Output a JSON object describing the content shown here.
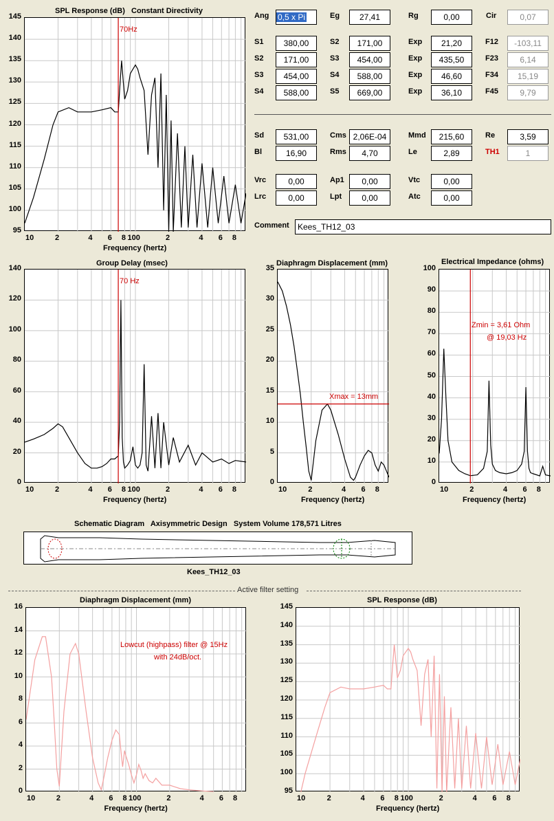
{
  "params": {
    "Ang": {
      "label": "Ang",
      "value": "0,5 x Pi"
    },
    "Eg": {
      "label": "Eg",
      "value": "27,41"
    },
    "Rg": {
      "label": "Rg",
      "value": "0,00"
    },
    "Cir": {
      "label": "Cir",
      "value": "0,07"
    },
    "rows": [
      {
        "a": "S1",
        "av": "380,00",
        "b": "S2",
        "bv": "171,00",
        "c": "Exp",
        "cv": "21,20",
        "d": "F12",
        "dv": "-103,11"
      },
      {
        "a": "S2",
        "av": "171,00",
        "b": "S3",
        "bv": "454,00",
        "c": "Exp",
        "cv": "435,50",
        "d": "F23",
        "dv": "6,14"
      },
      {
        "a": "S3",
        "av": "454,00",
        "b": "S4",
        "bv": "588,00",
        "c": "Exp",
        "cv": "46,60",
        "d": "F34",
        "dv": "15,19"
      },
      {
        "a": "S4",
        "av": "588,00",
        "b": "S5",
        "bv": "669,00",
        "c": "Exp",
        "cv": "36,10",
        "d": "F45",
        "dv": "9,79"
      }
    ],
    "driver": [
      {
        "a": "Sd",
        "av": "531,00",
        "b": "Cms",
        "bv": "2,06E-04",
        "c": "Mmd",
        "cv": "215,60",
        "d": "Re",
        "dv": "3,59"
      },
      {
        "a": "Bl",
        "av": "16,90",
        "b": "Rms",
        "bv": "4,70",
        "c": "Le",
        "cv": "2,89",
        "d": "TH1",
        "dv": "1"
      }
    ],
    "extra": [
      {
        "a": "Vrc",
        "av": "0,00",
        "b": "Ap1",
        "bv": "0,00",
        "c": "Vtc",
        "cv": "0,00"
      },
      {
        "a": "Lrc",
        "av": "0,00",
        "b": "Lpt",
        "bv": "0,00",
        "c": "Atc",
        "cv": "0,00"
      }
    ],
    "comment_label": "Comment",
    "comment_value": "Kees_TH12_03"
  },
  "colors": {
    "curve": "#000000",
    "marker": "#cc0000",
    "filtered": "#f4a0a0",
    "grid": "#c8c8c8"
  },
  "xlabel": "Frequency (hertz)",
  "log_ticks": [
    "10",
    "2",
    "4",
    "6",
    "8",
    "100",
    "2",
    "4",
    "6",
    "8"
  ],
  "schematic": {
    "title": "Schematic Diagram   Axisymmetric Design   System Volume 178,571 Litres",
    "caption": "Kees_TH12_03"
  },
  "filter_section": {
    "title": "Active filter setting",
    "note1": "Lowcut (highpass) filter @ 15Hz",
    "note2": "with 24dB/oct."
  },
  "chart_data": [
    {
      "id": "spl",
      "type": "line",
      "title": "SPL Response (dB)   Constant Directivity",
      "xlabel": "Frequency (hertz)",
      "ylabel": "",
      "xscale": "log",
      "xlim": [
        10,
        1000
      ],
      "ylim": [
        95,
        145
      ],
      "yticks": [
        95,
        100,
        105,
        110,
        115,
        120,
        125,
        130,
        135,
        140,
        145
      ],
      "marker": {
        "x": 70,
        "label": "70Hz"
      },
      "series": [
        {
          "x": [
            10,
            12,
            15,
            18,
            20,
            25,
            30,
            40,
            50,
            60,
            65,
            70,
            72,
            75,
            80,
            85,
            90,
            100,
            105,
            110,
            120,
            130,
            140,
            150,
            160,
            170,
            180,
            190,
            200,
            210,
            220,
            240,
            260,
            280,
            300,
            330,
            360,
            400,
            450,
            500,
            560,
            630,
            700,
            800,
            900,
            1000
          ],
          "y": [
            97,
            103,
            112,
            120,
            123,
            124,
            123,
            123,
            123.5,
            124,
            123,
            123,
            128,
            135,
            126,
            128,
            132,
            134,
            133,
            131,
            128,
            113,
            127,
            131,
            110,
            132,
            100,
            127,
            95,
            121,
            95,
            118,
            96,
            115,
            96,
            113,
            96,
            111,
            96,
            110,
            97,
            108,
            97,
            106,
            97,
            104
          ]
        }
      ]
    },
    {
      "id": "gd",
      "type": "line",
      "title": "Group Delay (msec)",
      "xlabel": "Frequency (hertz)",
      "ylabel": "",
      "xscale": "log",
      "xlim": [
        10,
        1000
      ],
      "ylim": [
        0,
        140
      ],
      "yticks": [
        0,
        20,
        40,
        60,
        80,
        100,
        120,
        140
      ],
      "marker": {
        "x": 70,
        "label": "70 Hz"
      },
      "series": [
        {
          "x": [
            10,
            12,
            15,
            18,
            20,
            22,
            25,
            30,
            35,
            40,
            45,
            50,
            55,
            60,
            65,
            70,
            72,
            74,
            76,
            78,
            80,
            85,
            90,
            95,
            100,
            105,
            110,
            115,
            120,
            125,
            130,
            140,
            150,
            160,
            170,
            180,
            200,
            220,
            250,
            300,
            350,
            400,
            500,
            600,
            700,
            800,
            1000
          ],
          "y": [
            27,
            29,
            32,
            36,
            39,
            37,
            30,
            20,
            13,
            10,
            10,
            11,
            13,
            16,
            16,
            18,
            40,
            120,
            30,
            14,
            10,
            12,
            15,
            24,
            12,
            10,
            12,
            20,
            78,
            12,
            8,
            44,
            10,
            46,
            10,
            40,
            12,
            30,
            14,
            25,
            12,
            20,
            14,
            16,
            13,
            15,
            14
          ]
        }
      ]
    },
    {
      "id": "disp",
      "type": "line",
      "title": "Diaphragm Displacement (mm)",
      "xlabel": "Frequency (hertz)",
      "ylabel": "",
      "xscale": "log",
      "xlim": [
        10,
        100
      ],
      "ylim": [
        0,
        35
      ],
      "yticks": [
        0,
        5,
        10,
        15,
        20,
        25,
        30,
        35
      ],
      "hline": {
        "y": 13,
        "label": "Xmax = 13mm"
      },
      "series": [
        {
          "x": [
            10,
            11,
            12,
            13,
            14,
            15,
            16,
            17,
            18,
            19,
            20,
            22,
            25,
            28,
            30,
            35,
            40,
            45,
            48,
            50,
            55,
            60,
            65,
            70,
            75,
            80,
            85,
            90,
            100
          ],
          "y": [
            33,
            31.5,
            29,
            26,
            22.5,
            18.5,
            14.5,
            10,
            6,
            2,
            0.5,
            7,
            12,
            13,
            12,
            8,
            4,
            1,
            0.5,
            1,
            3,
            4.5,
            5.4,
            5,
            3,
            2,
            3.5,
            3,
            1
          ]
        }
      ]
    },
    {
      "id": "imp",
      "type": "line",
      "title": "Electrical Impedance (ohms)",
      "xlabel": "Frequency (hertz)",
      "ylabel": "",
      "xscale": "log",
      "xlim": [
        10,
        100
      ],
      "ylim": [
        0,
        100
      ],
      "yticks": [
        0,
        10,
        20,
        30,
        40,
        50,
        60,
        70,
        80,
        90,
        100
      ],
      "marker": {
        "x": 19.03,
        "label": "Zmin = 3,61 Ohm",
        "label2": "@ 19,03 Hz"
      },
      "series": [
        {
          "x": [
            10,
            10.5,
            11,
            11.5,
            12,
            13,
            15,
            17,
            19,
            22,
            25,
            27,
            28,
            29,
            30,
            32,
            35,
            40,
            45,
            50,
            55,
            58,
            60,
            62,
            64,
            66,
            70,
            80,
            85,
            90,
            100
          ],
          "y": [
            14,
            30,
            63,
            40,
            20,
            10,
            6,
            4.5,
            3.6,
            4,
            7,
            15,
            48,
            18,
            9,
            6,
            5,
            4.5,
            5,
            6,
            9,
            15,
            45,
            15,
            7,
            5,
            4.5,
            3.5,
            8,
            4,
            3.5
          ]
        }
      ]
    },
    {
      "id": "fdisp",
      "type": "line",
      "title": "Diaphragm Displacement (mm)",
      "xlabel": "Frequency (hertz)",
      "ylabel": "",
      "xscale": "log",
      "xlim": [
        10,
        1000
      ],
      "ylim": [
        0,
        16
      ],
      "yticks": [
        0,
        2,
        4,
        6,
        8,
        10,
        12,
        14,
        16
      ],
      "series": [
        {
          "x": [
            10,
            11,
            12,
            14,
            15,
            17,
            18,
            19,
            20,
            22,
            25,
            28,
            30,
            35,
            40,
            45,
            48,
            50,
            55,
            60,
            65,
            70,
            73,
            75,
            78,
            80,
            85,
            90,
            95,
            100,
            105,
            110,
            115,
            120,
            130,
            140,
            150,
            170,
            200,
            250,
            300,
            400,
            500
          ],
          "y": [
            6.3,
            9,
            11.5,
            13.5,
            13.5,
            10,
            6,
            2,
            0.5,
            7,
            12,
            12.9,
            12,
            7,
            3,
            0.8,
            0.2,
            1,
            3,
            4.5,
            5.4,
            5,
            3.2,
            2.2,
            3.6,
            3.2,
            2.4,
            1.5,
            0.8,
            1.5,
            2.4,
            1.9,
            1.2,
            1.6,
            1,
            0.8,
            1.2,
            0.6,
            0.6,
            0.3,
            0.2,
            0.1,
            0.05
          ]
        }
      ]
    },
    {
      "id": "fspl",
      "type": "line",
      "title": "SPL Response (dB)",
      "xlabel": "Frequency (hertz)",
      "ylabel": "",
      "xscale": "log",
      "xlim": [
        10,
        1000
      ],
      "ylim": [
        95,
        145
      ],
      "yticks": [
        95,
        100,
        105,
        110,
        115,
        120,
        125,
        130,
        135,
        140,
        145
      ],
      "series": [
        {
          "x": [
            11,
            12,
            15,
            18,
            20,
            25,
            30,
            40,
            50,
            60,
            65,
            70,
            72,
            75,
            80,
            85,
            90,
            100,
            105,
            110,
            120,
            130,
            140,
            150,
            160,
            170,
            180,
            190,
            200,
            210,
            220,
            240,
            260,
            280,
            300,
            330,
            360,
            400,
            450,
            500,
            560,
            630,
            700,
            800,
            900,
            1000
          ],
          "y": [
            95,
            100,
            110,
            118,
            122,
            123.5,
            123,
            123,
            123.5,
            124,
            123,
            123,
            128,
            135,
            126,
            128,
            132,
            134,
            133,
            131,
            128,
            113,
            127,
            131,
            110,
            132,
            96,
            127,
            95,
            121,
            95,
            118,
            96,
            115,
            96,
            113,
            96,
            111,
            96,
            110,
            97,
            108,
            97,
            106,
            97,
            104
          ]
        }
      ]
    }
  ]
}
